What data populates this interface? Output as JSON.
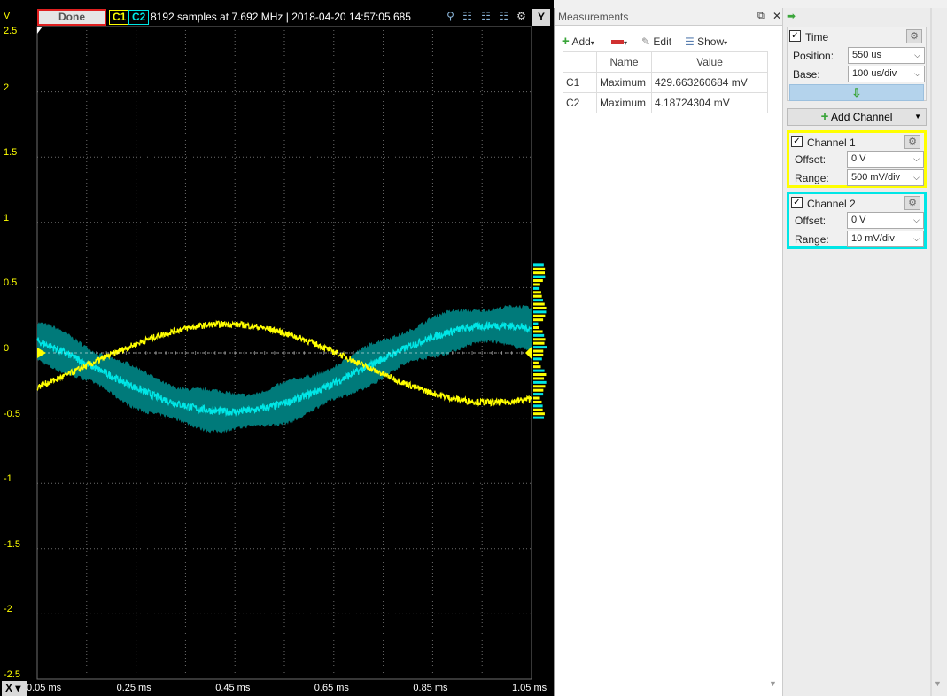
{
  "scope": {
    "status_label": "Done",
    "channel1_badge": "C1",
    "channel2_badge": "C2",
    "samples_text": "8192 samples at 7.692 MHz | 2018-04-20 14:57:05.685",
    "y_unit": "V",
    "y_button": "Y",
    "x_button": "X",
    "y_ticks": [
      "2.5",
      "2",
      "1.5",
      "1",
      "0.5",
      "0",
      "-0.5",
      "-1",
      "-1.5",
      "-2",
      "-2.5"
    ],
    "x_ticks": [
      "0.05 ms",
      "0.25 ms",
      "0.45 ms",
      "0.65 ms",
      "0.85 ms",
      "1.05 ms"
    ],
    "colors": {
      "c1": "#ffff00",
      "c2": "#00e6e6",
      "c2_band": "#007a7a",
      "grid": "#6e6e6e"
    }
  },
  "measurements": {
    "title": "Measurements",
    "toolbar": {
      "add_label": "Add",
      "edit_label": "Edit",
      "show_label": "Show"
    },
    "columns": [
      "",
      "Name",
      "Value"
    ],
    "rows": [
      {
        "channel": "C1",
        "name": "Maximum",
        "value": "429.663260684 mV"
      },
      {
        "channel": "C2",
        "name": "Maximum",
        "value": "4.18724304 mV"
      }
    ]
  },
  "settings": {
    "time": {
      "title": "Time",
      "position_label": "Position:",
      "position_value": "550 us",
      "base_label": "Base:",
      "base_value": "100 us/div"
    },
    "add_channel_label": "Add Channel",
    "channel1": {
      "title": "Channel 1",
      "offset_label": "Offset:",
      "offset_value": "0 V",
      "range_label": "Range:",
      "range_value": "500 mV/div"
    },
    "channel2": {
      "title": "Channel 2",
      "offset_label": "Offset:",
      "offset_value": "0 V",
      "range_label": "Range:",
      "range_value": "10 mV/div"
    }
  }
}
